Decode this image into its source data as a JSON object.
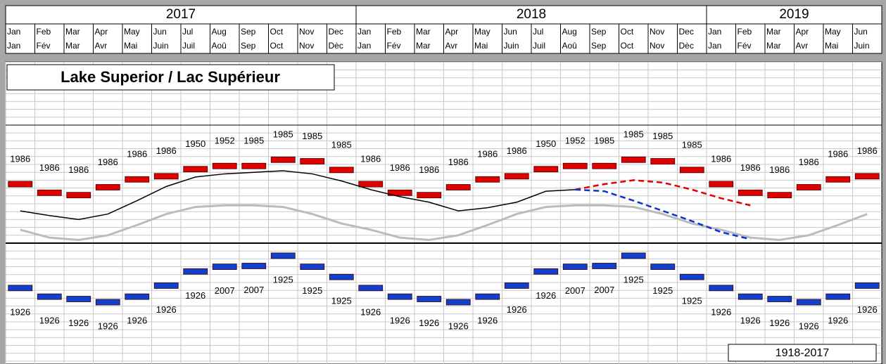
{
  "chart_data": {
    "type": "line",
    "title": "Lake Superior / Lac Supérieur",
    "period_label": "1918-2017",
    "years": [
      "2017",
      "2018",
      "2019"
    ],
    "categories": [
      "Jan",
      "Feb",
      "Mar",
      "Apr",
      "May",
      "Jun",
      "Jul",
      "Aug",
      "Sep",
      "Oct",
      "Nov",
      "Dec",
      "Jan",
      "Feb",
      "Mar",
      "Apr",
      "May",
      "Jun",
      "Jul",
      "Aug",
      "Sep",
      "Oct",
      "Nov",
      "Dec",
      "Jan",
      "Feb",
      "Mar",
      "Apr",
      "May",
      "Jun"
    ],
    "categories_fr": [
      "Jan",
      "Fév",
      "Mar",
      "Avr",
      "Mai",
      "Juin",
      "Juil",
      "Aoû",
      "Sep",
      "Oct",
      "Nov",
      "Dèc",
      "Jan",
      "Fév",
      "Mar",
      "Avr",
      "Mai",
      "Juin",
      "Juil",
      "Aoû",
      "Sep",
      "Oct",
      "Nov",
      "Dèc",
      "Jan",
      "Fév",
      "Mar",
      "Avr",
      "Mai",
      "Juin"
    ],
    "ylim": [
      0,
      38
    ],
    "yticks": [
      0,
      1,
      2,
      3,
      4,
      5,
      6,
      7,
      8,
      9,
      10,
      11,
      12,
      13,
      14,
      15,
      16,
      17,
      18,
      19,
      20,
      21,
      22,
      23,
      24,
      25,
      26,
      27,
      28,
      29,
      30,
      31,
      32,
      33,
      34,
      35,
      36,
      37,
      38
    ],
    "grid": true,
    "series": [
      {
        "style": "marker",
        "color": "#e00000",
        "label_side": "above",
        "values": [
          22.5,
          21.4,
          21.1,
          22.1,
          23.1,
          23.5,
          24.4,
          24.8,
          24.8,
          25.6,
          25.4,
          24.3,
          22.5,
          21.4,
          21.1,
          22.1,
          23.1,
          23.5,
          24.4,
          24.8,
          24.8,
          25.6,
          25.4,
          24.3,
          22.5,
          21.4,
          21.1,
          22.1,
          23.1,
          23.5
        ],
        "year_labels": [
          "1986",
          "1986",
          "1986",
          "1986",
          "1986",
          "1986",
          "1950",
          "1952",
          "1985",
          "1985",
          "1985",
          "1985",
          "1986",
          "1986",
          "1986",
          "1986",
          "1986",
          "1986",
          "1950",
          "1952",
          "1985",
          "1985",
          "1985",
          "1985",
          "1986",
          "1986",
          "1986",
          "1986",
          "1986",
          "1986"
        ]
      },
      {
        "style": "marker",
        "color": "#1040d0",
        "label_side": "below",
        "values": [
          9.3,
          8.2,
          7.9,
          7.5,
          8.2,
          9.6,
          11.4,
          12.0,
          12.1,
          13.4,
          12.0,
          10.7,
          9.3,
          8.2,
          7.9,
          7.5,
          8.2,
          9.6,
          11.4,
          12.0,
          12.1,
          13.4,
          12.0,
          10.7,
          9.3,
          8.2,
          7.9,
          7.5,
          8.2,
          9.6
        ],
        "year_labels": [
          "1926",
          "1926",
          "1926",
          "1926",
          "1926",
          "1926",
          "1926",
          "2007",
          "2007",
          "1925",
          "1925",
          "1925",
          "1926",
          "1926",
          "1926",
          "1926",
          "1926",
          "1926",
          "1926",
          "2007",
          "2007",
          "1925",
          "1925",
          "1925",
          "1926",
          "1926",
          "1926",
          "1926",
          "1926",
          "1926"
        ]
      },
      {
        "style": "line",
        "color": "#bbbbbb",
        "width": 3,
        "values": [
          16.7,
          15.7,
          15.4,
          16.0,
          17.3,
          18.7,
          19.6,
          19.8,
          19.8,
          19.6,
          18.7,
          17.5,
          16.7,
          15.7,
          15.4,
          16.0,
          17.3,
          18.7,
          19.6,
          19.8,
          19.8,
          19.6,
          18.7,
          17.5,
          16.7,
          15.7,
          15.4,
          16.0,
          17.3,
          18.7
        ]
      },
      {
        "style": "line",
        "color": "#000000",
        "width": 1.5,
        "values": [
          19.1,
          18.5,
          18.0,
          18.7,
          20.4,
          22.2,
          23.4,
          23.8,
          24.0,
          24.2,
          23.8,
          22.9,
          21.8,
          20.9,
          20.2,
          19.1,
          19.5,
          20.2,
          21.6,
          21.8,
          null,
          null,
          null,
          null,
          null,
          null,
          null,
          null,
          null,
          null
        ]
      },
      {
        "style": "dashed",
        "color": "#e00000",
        "width": 2.5,
        "values": [
          null,
          null,
          null,
          null,
          null,
          null,
          null,
          null,
          null,
          null,
          null,
          null,
          null,
          null,
          null,
          null,
          null,
          null,
          null,
          21.8,
          22.5,
          23.0,
          22.7,
          21.8,
          20.7,
          19.8,
          null,
          null,
          null,
          null
        ]
      },
      {
        "style": "dashed",
        "color": "#1030d0",
        "width": 2.5,
        "values": [
          null,
          null,
          null,
          null,
          null,
          null,
          null,
          null,
          null,
          null,
          null,
          null,
          null,
          null,
          null,
          null,
          null,
          null,
          null,
          21.8,
          21.6,
          20.4,
          19.1,
          17.8,
          16.4,
          15.5,
          null,
          null,
          null,
          null
        ]
      }
    ]
  }
}
